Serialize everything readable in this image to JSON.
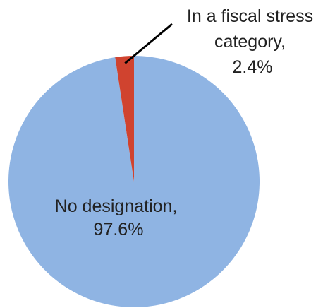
{
  "chart_data": {
    "type": "pie",
    "title": "",
    "slices": [
      {
        "label": "No designation",
        "value": 97.6,
        "label_lines": [
          "No designation,",
          "97.6%"
        ],
        "color": "#8FB4E3"
      },
      {
        "label": "In a fiscal stress category",
        "value": 2.4,
        "label_lines": [
          "In a fiscal stress",
          "category,",
          "2.4%"
        ],
        "color": "#D0432F"
      }
    ],
    "start": "12 o'clock",
    "direction": "counterclockwise from 12 o'clock for the smaller slice",
    "legend": "none (data labels on chart)"
  }
}
